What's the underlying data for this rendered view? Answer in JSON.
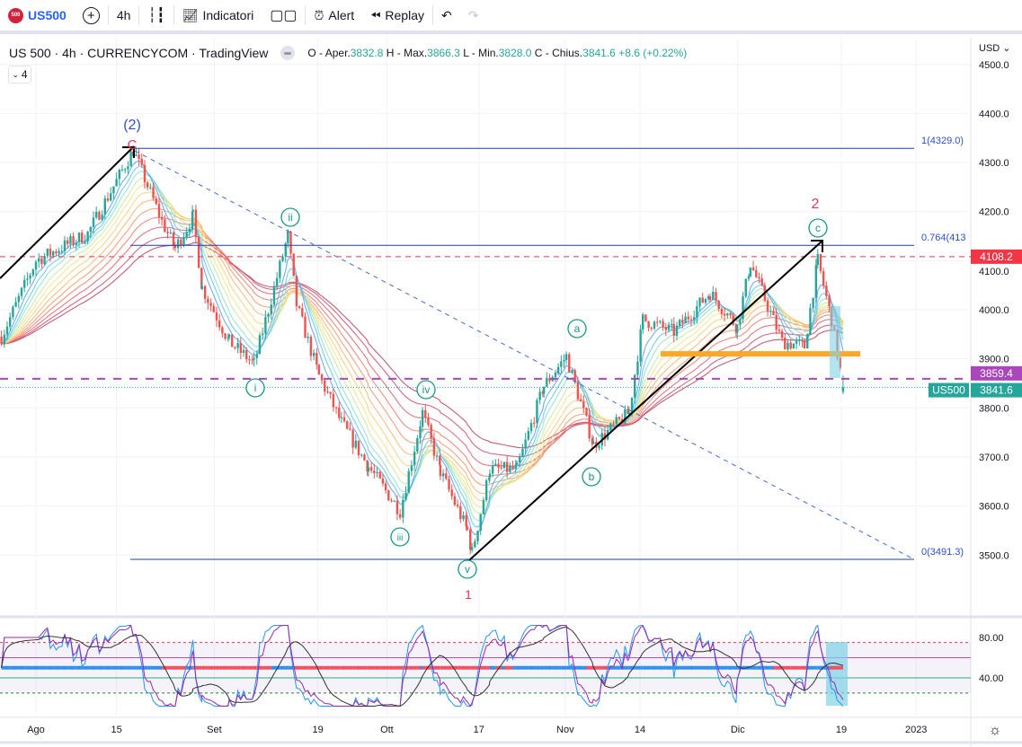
{
  "toolbar": {
    "symbol_logo": "500",
    "symbol": "US500",
    "interval": "4h",
    "indicators": "Indicatori",
    "alert": "Alert",
    "replay": "Replay"
  },
  "legend": {
    "title": "US 500 · 4h · CURRENCYCOM · TradingView",
    "o_label": "O - Aper.",
    "o": "3832.8",
    "h_label": "H - Max.",
    "h": "3866.3",
    "l_label": "L - Min.",
    "l": "3828.0",
    "c_label": "C - Chius.",
    "c": "3841.6",
    "change": "+8.6 (+0.22%)",
    "indicators_count": "4"
  },
  "price_axis": {
    "currency": "USD",
    "ticks": [
      "4500.0",
      "4400.0",
      "4300.0",
      "4200.0",
      "4100.0",
      "4000.0",
      "3900.0",
      "3800.0",
      "3700.0",
      "3600.0",
      "3500.0"
    ],
    "tags": {
      "red_level": "4108.2",
      "purple_level": "3859.4",
      "symbol_tag": "US500",
      "last_price": "3841.6"
    }
  },
  "rsi_axis": {
    "ticks": [
      "80.00",
      "40.00"
    ]
  },
  "time_axis": {
    "ticks": [
      "Ago",
      "15",
      "Set",
      "19",
      "Ott",
      "17",
      "Nov",
      "14",
      "Dic",
      "19",
      "2023"
    ]
  },
  "annotations": {
    "wave_2_big": "(2)",
    "wave_C": "C",
    "i": "i",
    "ii": "ii",
    "iii": "iii",
    "iv": "iv",
    "v": "v",
    "wave_1": "1",
    "a": "a",
    "b": "b",
    "c": "c",
    "wave_2": "2",
    "fib_1": "1(4329.0)",
    "fib_0764": "0.764(413",
    "fib_0": "0(3491.3)"
  },
  "colors": {
    "up": "#26a69a",
    "down": "#ef5350",
    "accent": "#2962ff",
    "wave_red": "#e53950",
    "wave_green": "#159a82",
    "orange": "#ffa726"
  },
  "chart_data": {
    "type": "candlestick",
    "x_unit": "days since Aug 1 2022",
    "x_ticks": [
      0,
      14,
      31,
      49,
      61,
      77,
      92,
      105,
      122,
      140,
      153
    ],
    "ylim": [
      3400,
      4520
    ],
    "price_path": [
      [
        -6,
        3945
      ],
      [
        0,
        4100
      ],
      [
        9,
        4155
      ],
      [
        16.9,
        4325
      ],
      [
        21.9,
        4180
      ],
      [
        24.2,
        4125
      ],
      [
        27.3,
        4190
      ],
      [
        28.9,
        4045
      ],
      [
        33.6,
        3935
      ],
      [
        37.9,
        3890
      ],
      [
        43.8,
        4150
      ],
      [
        45.3,
        4010
      ],
      [
        49.2,
        3865
      ],
      [
        53.1,
        3770
      ],
      [
        57.8,
        3680
      ],
      [
        63.3,
        3590
      ],
      [
        67.2,
        3790
      ],
      [
        70.3,
        3670
      ],
      [
        75,
        3550
      ],
      [
        75.8,
        3505
      ],
      [
        78.9,
        3675
      ],
      [
        83.6,
        3675
      ],
      [
        88.3,
        3845
      ],
      [
        92.2,
        3905
      ],
      [
        96.9,
        3725
      ],
      [
        103.1,
        3790
      ],
      [
        105.5,
        3980
      ],
      [
        110.9,
        3955
      ],
      [
        117.2,
        4035
      ],
      [
        121.9,
        3965
      ],
      [
        124.2,
        4095
      ],
      [
        129.7,
        3935
      ],
      [
        133.6,
        3925
      ],
      [
        135.9,
        4100
      ],
      [
        138.3,
        3980
      ],
      [
        140.3,
        3842
      ]
    ],
    "levels": {
      "fib_1": 4329.0,
      "fib_0764": 4131.3,
      "fib_0": 3491.3,
      "red_dashed": 4108.2,
      "purple_dashed": 3859.4,
      "orange_support": 3910,
      "last": 3841.6
    },
    "rsi": {
      "levels": [
        75,
        60,
        50,
        40,
        25
      ],
      "ylim": [
        10,
        95
      ]
    }
  }
}
